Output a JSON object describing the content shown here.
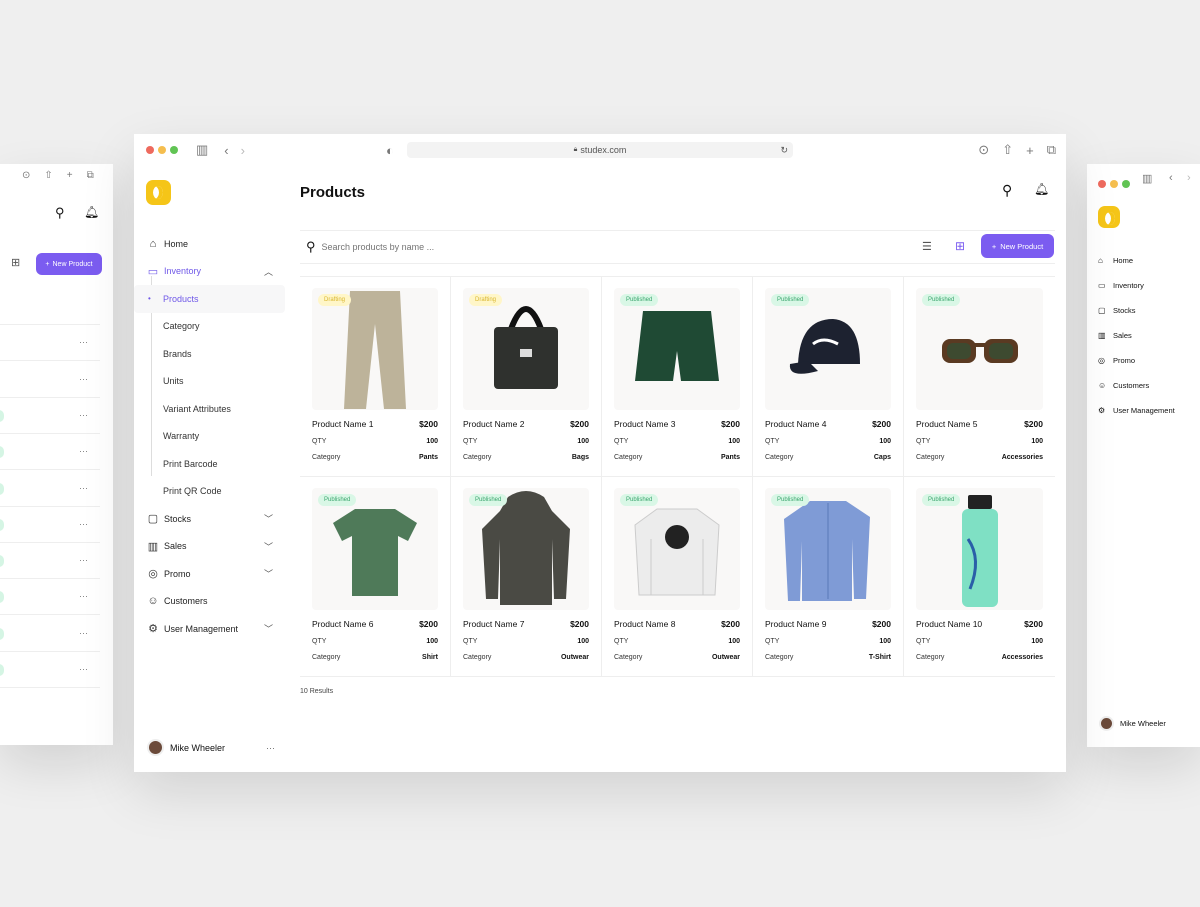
{
  "browser": {
    "url": "studex.com"
  },
  "sidebar": {
    "items": [
      {
        "label": "Home",
        "icon": "home-icon",
        "glyph": "⌂"
      },
      {
        "label": "Inventory",
        "icon": "archive-icon",
        "glyph": "▭",
        "expanded": true
      },
      {
        "label": "Products",
        "sub": true,
        "selected": true
      },
      {
        "label": "Category",
        "sub": true
      },
      {
        "label": "Brands",
        "sub": true
      },
      {
        "label": "Units",
        "sub": true
      },
      {
        "label": "Variant Attributes",
        "sub": true
      },
      {
        "label": "Warranty",
        "sub": true
      },
      {
        "label": "Print Barcode",
        "sub": true
      },
      {
        "label": "Print QR Code",
        "sub": true
      },
      {
        "label": "Stocks",
        "icon": "box-icon",
        "glyph": "▢",
        "chevron": true
      },
      {
        "label": "Sales",
        "icon": "bar-chart-icon",
        "glyph": "▥",
        "chevron": true
      },
      {
        "label": "Promo",
        "icon": "tag-icon",
        "glyph": "◎",
        "chevron": true
      },
      {
        "label": "Customers",
        "icon": "users-icon",
        "glyph": "☺"
      },
      {
        "label": "User Management",
        "icon": "user-gear-icon",
        "glyph": "⚙",
        "chevron": true
      }
    ],
    "user": {
      "name": "Mike Wheeler",
      "more": "···"
    }
  },
  "main": {
    "title": "Products",
    "search_placeholder": "Search products by name ...",
    "new_product": "New Product",
    "results": "10 Results",
    "labels": {
      "qty": "QTY",
      "category": "Category"
    },
    "products": [
      {
        "name": "Product Name 1",
        "price": "$200",
        "qty": "100",
        "category": "Pants",
        "status": "Drafting",
        "kind": "pants",
        "color": "#bdb39a"
      },
      {
        "name": "Product Name 2",
        "price": "$200",
        "qty": "100",
        "category": "Bags",
        "status": "Drafting",
        "kind": "bag",
        "color": "#2f312e"
      },
      {
        "name": "Product Name 3",
        "price": "$200",
        "qty": "100",
        "category": "Pants",
        "status": "Published",
        "kind": "shorts",
        "color": "#1f4a34"
      },
      {
        "name": "Product Name 4",
        "price": "$200",
        "qty": "100",
        "category": "Caps",
        "status": "Published",
        "kind": "cap",
        "color": "#1d2230"
      },
      {
        "name": "Product Name 5",
        "price": "$200",
        "qty": "100",
        "category": "Accessories",
        "status": "Published",
        "kind": "glasses",
        "color": "#5a3a22"
      },
      {
        "name": "Product Name 6",
        "price": "$200",
        "qty": "100",
        "category": "Shirt",
        "status": "Published",
        "kind": "tshirt",
        "color": "#4f7a59"
      },
      {
        "name": "Product Name 7",
        "price": "$200",
        "qty": "100",
        "category": "Outwear",
        "status": "Published",
        "kind": "jacket",
        "color": "#4a4a44"
      },
      {
        "name": "Product Name 8",
        "price": "$200",
        "qty": "100",
        "category": "Outwear",
        "status": "Published",
        "kind": "sweat",
        "color": "#ececec"
      },
      {
        "name": "Product Name 9",
        "price": "$200",
        "qty": "100",
        "category": "T-Shirt",
        "status": "Published",
        "kind": "shirt",
        "color": "#7f9bd6"
      },
      {
        "name": "Product Name 10",
        "price": "$200",
        "qty": "100",
        "category": "Accessories",
        "status": "Published",
        "kind": "bottle",
        "color": "#7fe0c4"
      }
    ]
  },
  "left_window": {
    "new_product": "New Product",
    "more": "···"
  },
  "right_window": {
    "items": [
      "Home",
      "Inventory",
      "Stocks",
      "Sales",
      "Promo",
      "Customers",
      "User Management"
    ],
    "user": "Mike Wheeler"
  },
  "colors": {
    "accent": "#7b5cf0",
    "logo": "#f5c518",
    "drafting": "#fff6c8",
    "published": "#d9f7e6"
  }
}
